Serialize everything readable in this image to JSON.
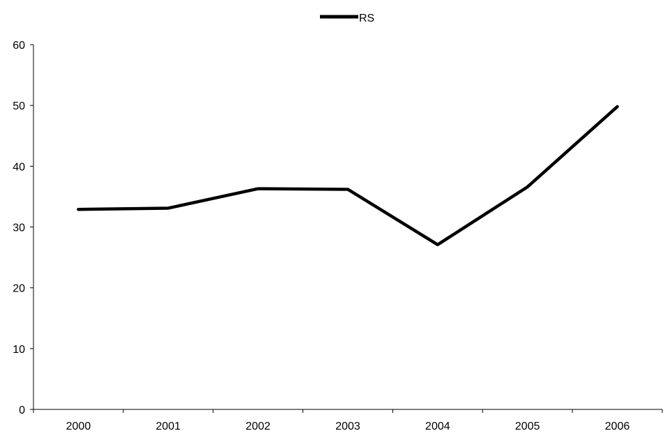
{
  "chart_data": {
    "type": "line",
    "x": [
      "2000",
      "2001",
      "2002",
      "2003",
      "2004",
      "2005",
      "2006"
    ],
    "series": [
      {
        "name": "RS",
        "values": [
          32.9,
          33.1,
          36.3,
          36.2,
          27.1,
          36.6,
          49.8
        ],
        "color": "#000000"
      }
    ],
    "ylim": [
      0,
      60
    ],
    "yticks": [
      0,
      10,
      20,
      30,
      40,
      50,
      60
    ],
    "title": "",
    "xlabel": "",
    "ylabel": "",
    "grid": false,
    "legend": "top-center"
  }
}
